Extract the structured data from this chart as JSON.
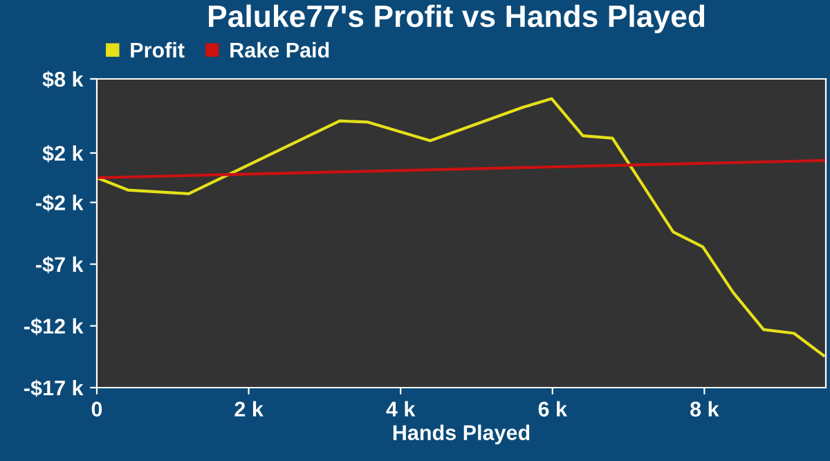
{
  "chart_data": {
    "type": "line",
    "title": "Paluke77's Profit vs Hands Played",
    "xlabel": "Hands Played",
    "series": [
      {
        "name": "Profit",
        "color": "#e6e01a",
        "x": [
          0,
          0.41,
          1.21,
          3.2,
          3.57,
          4.39,
          5.61,
          5.99,
          6.4,
          6.79,
          7.59,
          7.98,
          8.38,
          8.78,
          9.18,
          9.57
        ],
        "values": [
          0,
          -1.0,
          -1.3,
          4.6,
          4.5,
          3.0,
          5.7,
          6.4,
          3.4,
          3.2,
          -4.4,
          -5.6,
          -9.3,
          -12.3,
          -12.6,
          -14.4
        ]
      },
      {
        "name": "Rake Paid",
        "color": "#cc1111",
        "x": [
          0,
          9.6
        ],
        "values": [
          0,
          1.4
        ]
      }
    ],
    "xlim": [
      0,
      9.6
    ],
    "ylim": [
      -17,
      8
    ],
    "xticks": [
      0,
      {
        "value": 2,
        "label": "2 k"
      },
      {
        "value": 4,
        "label": "4 k"
      },
      {
        "value": 6,
        "label": "6 k"
      },
      {
        "value": 8,
        "label": "8 k"
      }
    ],
    "yticks": [
      {
        "value": 8,
        "label": "$8 k"
      },
      {
        "value": 2,
        "label": "$2 k"
      },
      {
        "value": -2,
        "label": "-$2 k"
      },
      {
        "value": -7,
        "label": "-$7 k"
      },
      {
        "value": -12,
        "label": "-$12 k"
      },
      {
        "value": -17,
        "label": "-$17 k"
      }
    ],
    "legend": "top left",
    "grid": false,
    "marker": "none",
    "line_style": "solid"
  }
}
